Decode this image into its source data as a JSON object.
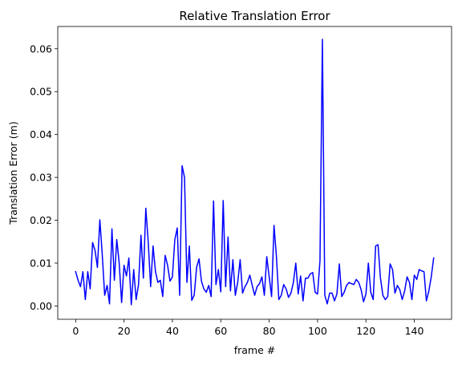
{
  "chart_data": {
    "type": "line",
    "title": "Relative Translation Error",
    "xlabel": "frame #",
    "ylabel": "Translation Error (m)",
    "xlim": [
      -7.4,
      155.4
    ],
    "ylim": [
      -0.0031,
      0.0652
    ],
    "x_ticks": [
      0,
      20,
      40,
      60,
      80,
      100,
      120,
      140
    ],
    "y_ticks": [
      0.0,
      0.01,
      0.02,
      0.03,
      0.04,
      0.05,
      0.06
    ],
    "x_tick_labels": [
      "0",
      "20",
      "40",
      "60",
      "80",
      "100",
      "120",
      "140"
    ],
    "y_tick_labels": [
      "0.00",
      "0.01",
      "0.02",
      "0.03",
      "0.04",
      "0.05",
      "0.06"
    ],
    "grid": false,
    "series": [
      {
        "color": "#0000ff",
        "x": [
          0,
          1,
          2,
          3,
          4,
          5,
          6,
          7,
          8,
          9,
          10,
          11,
          12,
          13,
          14,
          15,
          16,
          17,
          18,
          19,
          20,
          21,
          22,
          23,
          24,
          25,
          26,
          27,
          28,
          29,
          30,
          31,
          32,
          33,
          34,
          35,
          36,
          37,
          38,
          39,
          40,
          41,
          42,
          43,
          44,
          45,
          46,
          47,
          48,
          49,
          50,
          51,
          52,
          53,
          54,
          55,
          56,
          57,
          58,
          59,
          60,
          61,
          62,
          63,
          64,
          65,
          66,
          67,
          68,
          69,
          70,
          71,
          72,
          73,
          74,
          75,
          76,
          77,
          78,
          79,
          80,
          81,
          82,
          83,
          84,
          85,
          86,
          87,
          88,
          89,
          90,
          91,
          92,
          93,
          94,
          95,
          96,
          97,
          98,
          99,
          100,
          101,
          102,
          103,
          104,
          105,
          106,
          107,
          108,
          109,
          110,
          111,
          112,
          113,
          114,
          115,
          116,
          117,
          118,
          119,
          120,
          121,
          122,
          123,
          124,
          125,
          126,
          127,
          128,
          129,
          130,
          131,
          132,
          133,
          134,
          135,
          136,
          137,
          138,
          139,
          140,
          141,
          142,
          143,
          144,
          145,
          146,
          147,
          148
        ],
        "y": [
          0.008,
          0.006,
          0.0045,
          0.008,
          0.0015,
          0.008,
          0.004,
          0.0148,
          0.013,
          0.009,
          0.0201,
          0.012,
          0.0025,
          0.0048,
          0.0005,
          0.018,
          0.006,
          0.0155,
          0.01,
          0.0008,
          0.0095,
          0.007,
          0.0112,
          0.0003,
          0.0085,
          0.0015,
          0.005,
          0.0165,
          0.0065,
          0.0228,
          0.015,
          0.0045,
          0.014,
          0.008,
          0.0055,
          0.006,
          0.0022,
          0.0118,
          0.0095,
          0.0058,
          0.0068,
          0.0155,
          0.0182,
          0.0025,
          0.0327,
          0.03,
          0.0055,
          0.014,
          0.0013,
          0.0025,
          0.009,
          0.011,
          0.0058,
          0.004,
          0.0032,
          0.0048,
          0.0022,
          0.0245,
          0.005,
          0.0085,
          0.0033,
          0.0246,
          0.0045,
          0.0161,
          0.0035,
          0.0108,
          0.0025,
          0.0055,
          0.0108,
          0.003,
          0.0045,
          0.0055,
          0.0072,
          0.0048,
          0.0025,
          0.0045,
          0.0052,
          0.0068,
          0.0025,
          0.0115,
          0.0068,
          0.0022,
          0.0188,
          0.0115,
          0.0015,
          0.0025,
          0.005,
          0.004,
          0.002,
          0.003,
          0.0055,
          0.01,
          0.0028,
          0.007,
          0.0012,
          0.0065,
          0.0065,
          0.0075,
          0.0078,
          0.0032,
          0.0028,
          0.0105,
          0.0622,
          0.0025,
          0.0005,
          0.003,
          0.003,
          0.0012,
          0.0028,
          0.0098,
          0.0022,
          0.0032,
          0.0048,
          0.0055,
          0.0052,
          0.005,
          0.0062,
          0.0055,
          0.0038,
          0.001,
          0.0028,
          0.01,
          0.0032,
          0.0015,
          0.014,
          0.0143,
          0.0065,
          0.0025,
          0.0015,
          0.0022,
          0.0098,
          0.0085,
          0.003,
          0.0048,
          0.0038,
          0.0015,
          0.0035,
          0.0068,
          0.0055,
          0.0015,
          0.0072,
          0.0062,
          0.0085,
          0.0082,
          0.008,
          0.0012,
          0.0035,
          0.0068,
          0.0112
        ]
      }
    ]
  }
}
